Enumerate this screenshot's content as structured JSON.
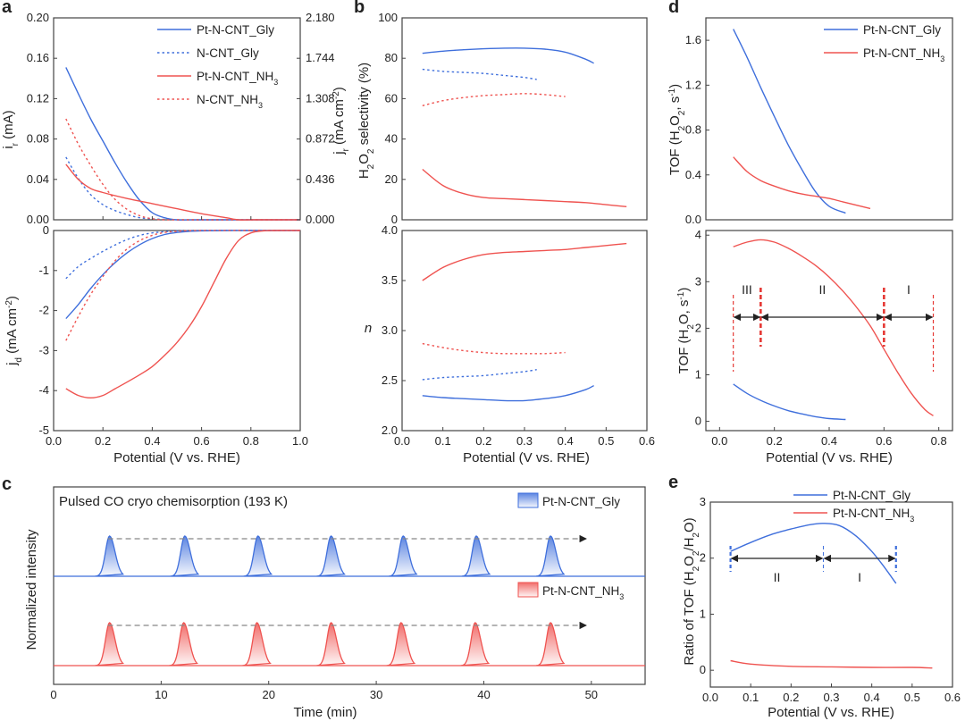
{
  "colors": {
    "blue": "#3f6fdc",
    "red": "#ef5350",
    "orange": "#f0813a",
    "axis": "#444444",
    "redDash": "#e53935"
  },
  "panels": {
    "a": "a",
    "b": "b",
    "c": "c",
    "d": "d",
    "e": "e"
  },
  "legend_ad": [
    {
      "label": "Pt-N-CNT_Gly",
      "color": "#3f6fdc",
      "dash": false
    },
    {
      "label": "N-CNT_Gly",
      "color": "#3f6fdc",
      "dash": true
    },
    {
      "label": "Pt-N-CNT_NH3",
      "color": "#ef5350",
      "dash": false
    },
    {
      "label": "N-CNT_NH3",
      "color": "#ef5350",
      "dash": true
    }
  ],
  "c_text": {
    "title": "Pulsed CO cryo chemisorption (193 K)",
    "legend_blue": "Pt-N-CNT_Gly",
    "legend_red": "Pt-N-CNT_NH3"
  },
  "d_text": {
    "regions": [
      "III",
      "II",
      "I"
    ]
  },
  "e_text": {
    "regions": [
      "II",
      "I"
    ]
  },
  "chart_data": [
    {
      "id": "a_top",
      "type": "line",
      "ylabel": "i_r (mA)",
      "ylabel_right": "j_r (mA cm-2)",
      "xlim": [
        0,
        1.0
      ],
      "ylim": [
        0,
        0.2
      ],
      "ylim_right": [
        0,
        2.18
      ],
      "yticks": [
        "0.00",
        "0.04",
        "0.08",
        "0.12",
        "0.16",
        "0.20"
      ],
      "yticks_right": [
        "0.000",
        "0.436",
        "0.872",
        "1.308",
        "1.744",
        "2.180"
      ],
      "series": [
        {
          "name": "Pt-N-CNT_Gly",
          "color": "blue",
          "dash": false,
          "x": [
            0.05,
            0.1,
            0.15,
            0.2,
            0.25,
            0.3,
            0.35,
            0.4,
            0.45,
            0.5,
            0.6,
            0.8,
            1.0
          ],
          "y": [
            0.151,
            0.125,
            0.1,
            0.078,
            0.056,
            0.036,
            0.019,
            0.007,
            0.002,
            0.0,
            0.0,
            0.0,
            0.0
          ]
        },
        {
          "name": "N-CNT_Gly",
          "color": "blue",
          "dash": true,
          "x": [
            0.05,
            0.1,
            0.15,
            0.2,
            0.25,
            0.3,
            0.35,
            0.4,
            0.5,
            0.6,
            0.8,
            1.0
          ],
          "y": [
            0.062,
            0.041,
            0.025,
            0.015,
            0.009,
            0.005,
            0.002,
            0.001,
            0.0,
            0.0,
            0.0,
            0.0
          ]
        },
        {
          "name": "Pt-N-CNT_NH3",
          "color": "red",
          "dash": false,
          "x": [
            0.05,
            0.1,
            0.15,
            0.2,
            0.3,
            0.4,
            0.5,
            0.6,
            0.7,
            0.75,
            0.8,
            1.0
          ],
          "y": [
            0.055,
            0.04,
            0.031,
            0.027,
            0.021,
            0.016,
            0.011,
            0.006,
            0.002,
            0.0,
            0.0,
            0.0
          ]
        },
        {
          "name": "N-CNT_NH3",
          "color": "red",
          "dash": true,
          "x": [
            0.05,
            0.1,
            0.15,
            0.2,
            0.25,
            0.3,
            0.35,
            0.4,
            0.45,
            0.5,
            0.6,
            0.8,
            1.0
          ],
          "y": [
            0.1,
            0.075,
            0.054,
            0.035,
            0.02,
            0.01,
            0.004,
            0.001,
            0.0,
            0.0,
            0.0,
            0.0,
            0.0
          ]
        }
      ]
    },
    {
      "id": "a_bottom",
      "type": "line",
      "xlabel": "Potential (V vs. RHE)",
      "ylabel": "j_d (mA cm-2)",
      "xlim": [
        0,
        1.0
      ],
      "ylim": [
        -5,
        0
      ],
      "xticks": [
        "0.0",
        "0.2",
        "0.4",
        "0.6",
        "0.8",
        "1.0"
      ],
      "yticks": [
        "-5",
        "-4",
        "-3",
        "-2",
        "-1",
        "0"
      ],
      "series": [
        {
          "name": "Pt-N-CNT_Gly",
          "color": "blue",
          "dash": false,
          "x": [
            0.05,
            0.1,
            0.15,
            0.2,
            0.25,
            0.3,
            0.35,
            0.4,
            0.45,
            0.5,
            0.55,
            0.6,
            0.7,
            0.8,
            1.0
          ],
          "y": [
            -2.2,
            -1.85,
            -1.45,
            -1.1,
            -0.8,
            -0.55,
            -0.35,
            -0.2,
            -0.1,
            -0.05,
            -0.02,
            -0.01,
            0,
            0,
            0
          ]
        },
        {
          "name": "N-CNT_Gly",
          "color": "blue",
          "dash": true,
          "x": [
            0.05,
            0.1,
            0.15,
            0.2,
            0.25,
            0.3,
            0.35,
            0.4,
            0.45,
            0.5,
            0.6,
            0.8,
            1.0
          ],
          "y": [
            -1.2,
            -0.9,
            -0.7,
            -0.52,
            -0.36,
            -0.22,
            -0.12,
            -0.06,
            -0.03,
            -0.01,
            0,
            0,
            0
          ]
        },
        {
          "name": "Pt-N-CNT_NH3",
          "color": "red",
          "dash": false,
          "x": [
            0.05,
            0.1,
            0.15,
            0.2,
            0.25,
            0.3,
            0.35,
            0.4,
            0.45,
            0.5,
            0.55,
            0.6,
            0.65,
            0.7,
            0.75,
            0.8,
            0.85,
            0.9,
            1.0
          ],
          "y": [
            -3.95,
            -4.12,
            -4.18,
            -4.12,
            -3.95,
            -3.78,
            -3.6,
            -3.4,
            -3.12,
            -2.8,
            -2.4,
            -1.9,
            -1.3,
            -0.7,
            -0.25,
            -0.06,
            -0.01,
            0,
            0
          ]
        },
        {
          "name": "N-CNT_NH3",
          "color": "red",
          "dash": true,
          "x": [
            0.05,
            0.1,
            0.15,
            0.2,
            0.25,
            0.3,
            0.35,
            0.4,
            0.45,
            0.5,
            0.6,
            0.8,
            1.0
          ],
          "y": [
            -2.75,
            -2.15,
            -1.6,
            -1.15,
            -0.75,
            -0.45,
            -0.25,
            -0.12,
            -0.05,
            -0.02,
            0,
            0,
            0
          ]
        }
      ]
    },
    {
      "id": "b_top",
      "type": "line",
      "ylabel": "H2O2 selectivity (%)",
      "xlim": [
        0,
        0.6
      ],
      "ylim": [
        0,
        100
      ],
      "yticks": [
        "0",
        "20",
        "40",
        "60",
        "80",
        "100"
      ],
      "series": [
        {
          "name": "Pt-N-CNT_Gly",
          "color": "blue",
          "dash": false,
          "x": [
            0.05,
            0.1,
            0.15,
            0.2,
            0.25,
            0.3,
            0.35,
            0.4,
            0.45,
            0.47
          ],
          "y": [
            82.5,
            83.5,
            84.2,
            84.7,
            85,
            85,
            84.5,
            83,
            79.5,
            77.5
          ]
        },
        {
          "name": "N-CNT_Gly",
          "color": "blue",
          "dash": true,
          "x": [
            0.05,
            0.1,
            0.15,
            0.2,
            0.25,
            0.3,
            0.33
          ],
          "y": [
            74.5,
            73.5,
            73,
            72.5,
            71.5,
            70.5,
            69.5
          ]
        },
        {
          "name": "Pt-N-CNT_NH3",
          "color": "red",
          "dash": false,
          "x": [
            0.05,
            0.1,
            0.15,
            0.2,
            0.25,
            0.3,
            0.35,
            0.4,
            0.45,
            0.5,
            0.55
          ],
          "y": [
            25,
            17,
            13,
            11,
            10.5,
            10,
            9.5,
            9,
            8.5,
            7.5,
            6.5
          ]
        },
        {
          "name": "N-CNT_NH3",
          "color": "red",
          "dash": true,
          "x": [
            0.05,
            0.1,
            0.15,
            0.2,
            0.25,
            0.3,
            0.35,
            0.4
          ],
          "y": [
            56.5,
            59,
            60.5,
            61.5,
            62,
            62.5,
            62,
            61
          ]
        }
      ]
    },
    {
      "id": "b_bottom",
      "type": "line",
      "xlabel": "Potential (V vs. RHE)",
      "ylabel": "n",
      "xlim": [
        0,
        0.6
      ],
      "ylim": [
        2.0,
        4.0
      ],
      "xticks": [
        "0.0",
        "0.1",
        "0.2",
        "0.3",
        "0.4",
        "0.5",
        "0.6"
      ],
      "yticks": [
        "2.0",
        "2.5",
        "3.0",
        "3.5",
        "4.0"
      ],
      "series": [
        {
          "name": "Pt-N-CNT_Gly",
          "color": "blue",
          "dash": false,
          "x": [
            0.05,
            0.1,
            0.15,
            0.2,
            0.25,
            0.3,
            0.35,
            0.4,
            0.45,
            0.47
          ],
          "y": [
            2.35,
            2.33,
            2.32,
            2.31,
            2.3,
            2.3,
            2.32,
            2.35,
            2.41,
            2.45
          ]
        },
        {
          "name": "N-CNT_Gly",
          "color": "blue",
          "dash": true,
          "x": [
            0.05,
            0.1,
            0.15,
            0.2,
            0.25,
            0.3,
            0.33
          ],
          "y": [
            2.51,
            2.53,
            2.54,
            2.55,
            2.57,
            2.59,
            2.61
          ]
        },
        {
          "name": "Pt-N-CNT_NH3",
          "color": "red",
          "dash": false,
          "x": [
            0.05,
            0.1,
            0.15,
            0.2,
            0.25,
            0.3,
            0.35,
            0.4,
            0.45,
            0.5,
            0.55
          ],
          "y": [
            3.5,
            3.63,
            3.71,
            3.76,
            3.78,
            3.79,
            3.8,
            3.81,
            3.83,
            3.85,
            3.87
          ]
        },
        {
          "name": "N-CNT_NH3",
          "color": "red",
          "dash": true,
          "x": [
            0.05,
            0.1,
            0.15,
            0.2,
            0.25,
            0.3,
            0.35,
            0.4
          ],
          "y": [
            2.87,
            2.83,
            2.8,
            2.78,
            2.77,
            2.77,
            2.77,
            2.78
          ]
        }
      ]
    },
    {
      "id": "c",
      "type": "area",
      "title": "Pulsed CO cryo chemisorption (193 K)",
      "xlabel": "Time (min)",
      "ylabel": "Normalized intensity",
      "xlim": [
        0,
        55
      ],
      "xticks": [
        "0",
        "10",
        "20",
        "30",
        "40",
        "50"
      ],
      "series": [
        {
          "name": "Pt-N-CNT_Gly",
          "color": "blue",
          "peak_times": [
            5.2,
            12.2,
            19,
            25.8,
            32.5,
            39.3,
            46.2
          ]
        },
        {
          "name": "Pt-N-CNT_NH3",
          "color": "red",
          "peak_times": [
            5.2,
            12.1,
            18.9,
            25.8,
            32.3,
            39.2,
            46.2
          ]
        }
      ]
    },
    {
      "id": "d_top",
      "type": "line",
      "ylabel": "TOF (H2O2, s-1)",
      "xlim": [
        -0.05,
        0.85
      ],
      "ylim": [
        0,
        1.8
      ],
      "yticks": [
        "0.0",
        "0.4",
        "0.8",
        "1.2",
        "1.6"
      ],
      "series": [
        {
          "name": "Pt-N-CNT_Gly",
          "color": "blue",
          "dash": false,
          "x": [
            0.05,
            0.1,
            0.15,
            0.2,
            0.25,
            0.3,
            0.35,
            0.4,
            0.46
          ],
          "y": [
            1.7,
            1.45,
            1.18,
            0.92,
            0.67,
            0.45,
            0.25,
            0.12,
            0.06
          ]
        },
        {
          "name": "Pt-N-CNT_NH3",
          "color": "red",
          "dash": false,
          "x": [
            0.05,
            0.1,
            0.15,
            0.2,
            0.25,
            0.3,
            0.35,
            0.4,
            0.45,
            0.5,
            0.55
          ],
          "y": [
            0.56,
            0.43,
            0.35,
            0.3,
            0.26,
            0.23,
            0.21,
            0.19,
            0.16,
            0.13,
            0.1
          ]
        }
      ]
    },
    {
      "id": "d_bottom",
      "type": "line",
      "xlabel": "Potential (V vs. RHE)",
      "ylabel": "TOF (H2O, s-1)",
      "xlim": [
        -0.05,
        0.85
      ],
      "ylim": [
        -0.2,
        4.1
      ],
      "xticks": [
        "0.0",
        "0.2",
        "0.4",
        "0.6",
        "0.8"
      ],
      "yticks": [
        "0",
        "1",
        "2",
        "3",
        "4"
      ],
      "region_bounds": [
        0.05,
        0.15,
        0.6,
        0.78
      ],
      "series": [
        {
          "name": "Pt-N-CNT_Gly",
          "color": "blue",
          "dash": false,
          "x": [
            0.05,
            0.1,
            0.15,
            0.2,
            0.25,
            0.3,
            0.35,
            0.4,
            0.46
          ],
          "y": [
            0.8,
            0.6,
            0.45,
            0.33,
            0.23,
            0.16,
            0.1,
            0.06,
            0.04
          ]
        },
        {
          "name": "Pt-N-CNT_NH3",
          "color": "red",
          "dash": false,
          "x": [
            0.05,
            0.1,
            0.15,
            0.2,
            0.25,
            0.3,
            0.35,
            0.4,
            0.45,
            0.5,
            0.55,
            0.6,
            0.65,
            0.7,
            0.75,
            0.78
          ],
          "y": [
            3.75,
            3.85,
            3.9,
            3.85,
            3.72,
            3.55,
            3.35,
            3.1,
            2.8,
            2.45,
            2.05,
            1.55,
            1.05,
            0.6,
            0.25,
            0.12
          ]
        }
      ]
    },
    {
      "id": "e",
      "type": "line",
      "xlabel": "Potential (V vs. RHE)",
      "ylabel": "Ratio of TOF (H2O2/H2O)",
      "xlim": [
        0,
        0.6
      ],
      "ylim": [
        -0.3,
        3
      ],
      "xticks": [
        "0.0",
        "0.1",
        "0.2",
        "0.3",
        "0.4",
        "0.5",
        "0.6"
      ],
      "yticks": [
        "0",
        "1",
        "2",
        "3"
      ],
      "region_bounds": [
        0.05,
        0.28,
        0.46
      ],
      "series": [
        {
          "name": "Pt-N-CNT_Gly",
          "color": "blue",
          "dash": false,
          "x": [
            0.05,
            0.1,
            0.15,
            0.2,
            0.25,
            0.28,
            0.32,
            0.36,
            0.4,
            0.43,
            0.46
          ],
          "y": [
            2.12,
            2.28,
            2.42,
            2.52,
            2.6,
            2.62,
            2.58,
            2.4,
            2.12,
            1.85,
            1.55
          ]
        },
        {
          "name": "Pt-N-CNT_NH3",
          "color": "red",
          "dash": false,
          "x": [
            0.05,
            0.1,
            0.2,
            0.3,
            0.4,
            0.5,
            0.55
          ],
          "y": [
            0.17,
            0.11,
            0.07,
            0.06,
            0.05,
            0.05,
            0.04
          ]
        }
      ]
    }
  ]
}
